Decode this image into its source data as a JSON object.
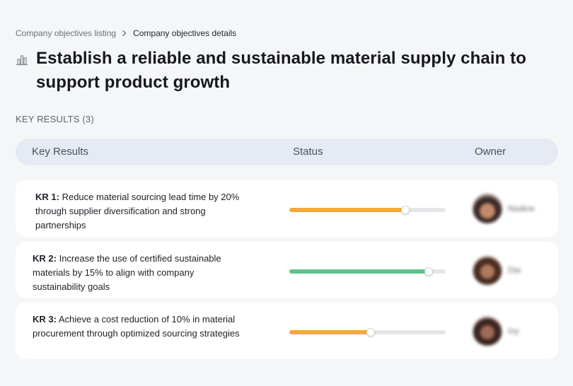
{
  "breadcrumb": {
    "parent": "Company objectives listing",
    "current": "Company objectives details"
  },
  "objective": {
    "icon": "building-chart-icon",
    "title": "Establish a reliable and sustainable material supply chain to support product growth"
  },
  "key_results_label": "KEY RESULTS (3)",
  "table": {
    "headers": {
      "key_results": "Key Results",
      "status": "Status",
      "owner": "Owner"
    }
  },
  "key_results": [
    {
      "code": "KR 1:",
      "text": "Reduce material sourcing lead time by 20% through supplier diversification and strong partnerships",
      "progress": 0.74,
      "color": "#f5a93a",
      "owner": "Nadine"
    },
    {
      "code": "KR 2:",
      "text": "Increase the use of certified sustainable materials by 15% to align with company sustainability goals",
      "progress": 0.89,
      "color": "#5cc48c",
      "owner": "Dai"
    },
    {
      "code": "KR 3:",
      "text": "Achieve a cost reduction of 10% in material procurement through optimized sourcing strategies",
      "progress": 0.52,
      "color": "#f5a93a",
      "owner": "Ivy"
    }
  ]
}
